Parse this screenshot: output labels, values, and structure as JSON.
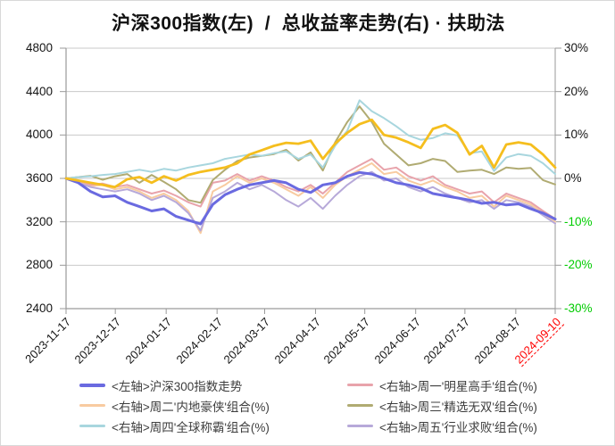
{
  "title": "沪深300指数(左)  /  总收益率走势(右) · 扶助法",
  "chart_data": {
    "type": "line",
    "title": "沪深300指数(左) / 总收益率走势(右) · 扶助法",
    "grid": "horizontal-only",
    "left_axis": {
      "label": "沪深300指数",
      "min": 2400,
      "max": 4800,
      "ticks": [
        4800,
        4400,
        4000,
        3600,
        3200,
        2800,
        2400
      ]
    },
    "right_axis": {
      "label": "总收益率(%)",
      "min": -30,
      "max": 30,
      "ticks": [
        {
          "label": "30%",
          "value": 30
        },
        {
          "label": "20%",
          "value": 20
        },
        {
          "label": "10%",
          "value": 10
        },
        {
          "label": "0%",
          "value": 0
        },
        {
          "label": "-10%",
          "value": -10
        },
        {
          "label": "-20%",
          "value": -20
        },
        {
          "label": "-30%",
          "value": -30
        }
      ],
      "negative_color": "#00cc00"
    },
    "x_axis": {
      "total_days": 298,
      "ticks": [
        {
          "label": "2023-11-17",
          "day": 0
        },
        {
          "label": "2023-12-17",
          "day": 30
        },
        {
          "label": "2024-01-17",
          "day": 61
        },
        {
          "label": "2024-02-17",
          "day": 92
        },
        {
          "label": "2024-03-17",
          "day": 121
        },
        {
          "label": "2024-04-17",
          "day": 152
        },
        {
          "label": "2024-05-17",
          "day": 182
        },
        {
          "label": "2024-06-17",
          "day": 213
        },
        {
          "label": "2024-07-17",
          "day": 243
        },
        {
          "label": "2024-08-17",
          "day": 274
        },
        {
          "label": "2024-09-10",
          "day": 298,
          "highlight": true
        }
      ]
    },
    "samples_note": "each series has 41 evenly spaced samples from 2023-11-17 to 2024-09-10",
    "series": [
      {
        "name": "tuesday-neidihaoxia",
        "label": "<右轴>周二'内地豪侠'组合(%)",
        "axis": "right",
        "color": "#f8cba0",
        "width": 2,
        "values": [
          0,
          -0.8,
          -1.8,
          -1.5,
          -2.5,
          -2.0,
          -3.0,
          -4.5,
          -3.5,
          -5.0,
          -7.5,
          -12.6,
          -3.0,
          -1.5,
          0.5,
          -1.0,
          0.0,
          -1.0,
          -2.5,
          -4.0,
          -2.0,
          -4.5,
          -1.5,
          0.5,
          2.0,
          3.5,
          1.0,
          1.5,
          -0.5,
          -1.5,
          -0.5,
          -2.0,
          -3.0,
          -4.5,
          -4.0,
          -6.5,
          -4.0,
          -5.0,
          -6.0,
          -8.0,
          -10.0
        ]
      },
      {
        "name": "friday-hangyeqiubai",
        "label": "<右轴>周五'行业求败'组合(%)",
        "axis": "right",
        "color": "#b7a9d9",
        "width": 2,
        "values": [
          0,
          -1.0,
          -2.0,
          -2.5,
          -3.0,
          -2.5,
          -3.5,
          -5.0,
          -4.0,
          -5.5,
          -8.0,
          -12.0,
          -4.5,
          -3.0,
          -1.0,
          -2.5,
          -1.5,
          -3.0,
          -5.0,
          -6.5,
          -4.5,
          -7.0,
          -4.0,
          -1.5,
          0.5,
          1.5,
          -0.5,
          0.0,
          -2.0,
          -3.0,
          -2.0,
          -3.5,
          -4.5,
          -5.5,
          -5.0,
          -7.0,
          -5.0,
          -5.5,
          -6.5,
          -8.5,
          -10.4
        ]
      },
      {
        "name": "monday-mingxinggaoshou",
        "label": "<右轴>周一'明星高手'组合(%)",
        "axis": "right",
        "color": "#e8a3ab",
        "width": 2,
        "values": [
          0,
          -0.5,
          -1.5,
          -1.2,
          -2.0,
          -1.5,
          -2.5,
          -3.5,
          -2.8,
          -4.0,
          -5.5,
          -6.5,
          -1.0,
          -0.5,
          1.0,
          -0.5,
          0.5,
          -0.5,
          -2.0,
          -3.0,
          -1.5,
          -3.5,
          -1.0,
          1.5,
          3.0,
          4.5,
          2.0,
          2.5,
          0.5,
          -0.5,
          0.5,
          -1.5,
          -2.5,
          -3.5,
          -3.0,
          -5.5,
          -3.5,
          -4.5,
          -5.5,
          -7.5,
          -9.3
        ]
      },
      {
        "name": "wednesday-jingxuanwushuang",
        "label": "<右轴>周三'精选无双'组合(%)",
        "axis": "right",
        "color": "#b0ab72",
        "width": 2,
        "values": [
          0,
          0.3,
          0.6,
          -0.3,
          0.5,
          1.0,
          -1.0,
          0.8,
          -0.8,
          -2.5,
          -5.0,
          -5.6,
          -0.4,
          2.0,
          4.0,
          4.8,
          5.2,
          5.6,
          6.6,
          4.1,
          6.0,
          1.8,
          8.3,
          13.0,
          16.6,
          13.0,
          8.0,
          5.5,
          3.0,
          3.5,
          4.5,
          4.0,
          1.5,
          1.8,
          2.0,
          1.0,
          2.5,
          2.2,
          2.4,
          -0.4,
          -1.4
        ]
      },
      {
        "name": "thursday-quanqiuchengba",
        "label": "<右轴>周四'全球称霸'组合(%)",
        "axis": "right",
        "color": "#a8d6de",
        "width": 2,
        "values": [
          0,
          0.3,
          0.5,
          0.8,
          1.0,
          1.5,
          2.0,
          1.5,
          2.2,
          1.8,
          2.5,
          3.0,
          3.5,
          4.5,
          5.0,
          5.5,
          5.2,
          5.8,
          6.2,
          4.5,
          5.5,
          2.5,
          7.5,
          11.0,
          18.0,
          15.5,
          13.9,
          12.0,
          9.9,
          8.9,
          9.3,
          10.4,
          9.9,
          5.8,
          6.2,
          1.7,
          4.8,
          5.6,
          5.2,
          3.5,
          1.0
        ]
      },
      {
        "name": "csi300-index",
        "label": "<左轴>沪深300指数走势",
        "axis": "left",
        "color": "#6a6ae0",
        "width": 3,
        "values": [
          3600,
          3560,
          3480,
          3430,
          3440,
          3380,
          3340,
          3300,
          3320,
          3250,
          3215,
          3180,
          3360,
          3450,
          3500,
          3540,
          3560,
          3580,
          3560,
          3500,
          3470,
          3540,
          3560,
          3620,
          3655,
          3640,
          3600,
          3560,
          3540,
          3510,
          3460,
          3440,
          3420,
          3400,
          3370,
          3380,
          3355,
          3365,
          3320,
          3280,
          3225
        ]
      },
      {
        "name": "unlabeled-gold",
        "label": "",
        "in_legend": false,
        "axis": "right",
        "color": "#f5be1e",
        "width": 2.8,
        "values": [
          0,
          -0.5,
          -1.0,
          -1.5,
          -2.0,
          -0.2,
          0.3,
          -1.0,
          0.5,
          -0.5,
          0.8,
          1.5,
          2.0,
          2.5,
          3.5,
          5.5,
          6.5,
          7.5,
          8.2,
          8.0,
          8.7,
          4.5,
          8.0,
          10.5,
          12.5,
          13.5,
          10.0,
          9.4,
          8.3,
          7.0,
          11.4,
          12.3,
          10.5,
          5.5,
          7.5,
          2.5,
          7.8,
          8.3,
          7.8,
          5.5,
          2.5
        ]
      }
    ]
  },
  "legend": {
    "items": [
      {
        "label": "<左轴>沪深300指数走势",
        "color": "#6a6ae0",
        "thickness": 4
      },
      {
        "label": "<右轴>周一'明星高手'组合(%)",
        "color": "#e8a3ab",
        "thickness": 2.5
      },
      {
        "label": "<右轴>周二'内地豪侠'组合(%)",
        "color": "#f8cba0",
        "thickness": 2.5
      },
      {
        "label": "<右轴>周三'精选无双'组合(%)",
        "color": "#b0ab72",
        "thickness": 2.5
      },
      {
        "label": "<右轴>周四'全球称霸'组合(%)",
        "color": "#a8d6de",
        "thickness": 2.5
      },
      {
        "label": "<右轴>周五'行业求败'组合(%)",
        "color": "#b7a9d9",
        "thickness": 2.5
      }
    ]
  },
  "colors": {
    "gridline": "#c9c9c9",
    "axis_line": "#9a9a9a",
    "negative_tick": "#00cc00",
    "highlight_date": "#ff0000"
  }
}
